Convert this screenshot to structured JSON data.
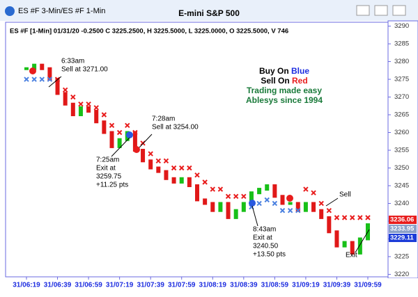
{
  "window": {
    "title": "ES #F 3-Min/ES #F 1-Min"
  },
  "chart_data": {
    "type": "candlestick-line",
    "title": "E-mini S&P 500",
    "info": "ES #F [1-Min] 01/31/20  -0.2500 C 3225.2500, H 3225.5000, L 3225.0000, O 3225.5000, V 746",
    "categories": [
      "31/06:19",
      null,
      null,
      null,
      "31/06:39",
      null,
      null,
      null,
      "31/06:59",
      null,
      null,
      null,
      "31/07:19",
      null,
      null,
      null,
      "31/07:39",
      null,
      null,
      null,
      "31/07:59",
      null,
      null,
      null,
      "31/08:19",
      null,
      null,
      null,
      "31/08:39",
      null,
      null,
      null,
      "31/08:59",
      null,
      null,
      null,
      "31/09:19",
      null,
      null,
      null,
      "31/09:39",
      null,
      null,
      null,
      "31/09:59"
    ],
    "series": [
      {
        "name": "Price",
        "color_up": "#18c018",
        "color_down": "#e01818",
        "values": [
          3278,
          3279,
          3278,
          3275,
          3271,
          3268,
          3265,
          3267,
          3266,
          3263,
          3260,
          3256,
          3258,
          3260,
          3255,
          3252,
          3250,
          3249,
          3247,
          3246,
          3247,
          3245,
          3241,
          3240,
          3238,
          3240,
          3236,
          3238,
          3240,
          3243,
          3244,
          3245,
          3242,
          3240,
          3240,
          3238,
          3240,
          3238,
          3236,
          3232,
          3228,
          3229,
          3226,
          3230,
          3234
        ]
      },
      {
        "name": "Sell stop",
        "color": "#e81c1c",
        "values": [
          null,
          null,
          null,
          null,
          3275,
          3272,
          3270,
          3268,
          3268,
          3267,
          3265,
          3262,
          3260,
          3262,
          3260,
          3257,
          3254,
          3252,
          3252,
          3250,
          3250,
          3250,
          3248,
          3246,
          3244,
          3244,
          3242,
          3242,
          3242,
          null,
          null,
          null,
          null,
          null,
          null,
          null,
          3244,
          3243,
          3240,
          3238,
          3236,
          3236,
          3236,
          3236,
          3236
        ]
      },
      {
        "name": "Buy stop",
        "color": "#4a80e0",
        "values": [
          3275,
          3275,
          3275,
          3275,
          null,
          null,
          null,
          null,
          null,
          null,
          null,
          null,
          null,
          null,
          null,
          null,
          null,
          null,
          null,
          null,
          null,
          null,
          null,
          null,
          null,
          null,
          null,
          null,
          null,
          3239,
          3240,
          3241,
          3240,
          3238,
          3238,
          3238,
          null,
          null,
          null,
          null,
          null,
          null,
          null,
          null,
          null
        ]
      }
    ],
    "ylim": [
      3219.5,
      3290.5
    ],
    "yticks": [
      3220,
      3225,
      3230,
      3235,
      3240,
      3245,
      3250,
      3255,
      3260,
      3265,
      3270,
      3275,
      3280,
      3285,
      3290
    ],
    "price_tags": [
      {
        "label": "3236.06",
        "color": "#e81c1c"
      },
      {
        "label": "3233.95",
        "color": "#8aa0c8"
      },
      {
        "label": "3229.11",
        "color": "#1c3cd8"
      }
    ],
    "legend_text": {
      "line1a": "Buy On ",
      "line1b": "Blue",
      "line2a": "Sell On ",
      "line2b": "Red",
      "line3": "Trading made easy",
      "line4": "Ablesys since 1994"
    },
    "annotations": [
      {
        "lines": [
          "6:33am",
          "Sell at 3271.00"
        ]
      },
      {
        "lines": [
          "7:28am",
          "Sell at 3254.00"
        ]
      },
      {
        "lines": [
          "7:25am",
          "Exit at",
          "3259.75",
          "+11.25 pts"
        ]
      },
      {
        "lines": [
          "8:43am",
          "Exit at",
          "3240.50",
          "+13.50 pts"
        ]
      },
      {
        "lines": [
          "Sell"
        ]
      },
      {
        "lines": [
          "Exit"
        ]
      }
    ]
  }
}
